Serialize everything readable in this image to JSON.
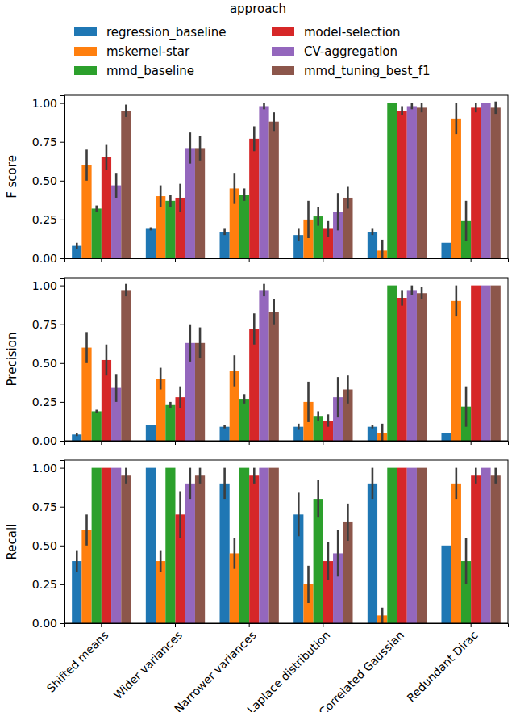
{
  "chart_data": [
    {
      "type": "bar",
      "ylabel": "F score",
      "legend": "top",
      "legend_title": "approach",
      "grid": false,
      "categories": [
        null,
        null,
        null,
        null,
        null,
        null
      ],
      "ylim": [
        0,
        1.05
      ],
      "yticks": [
        {
          "value": 0,
          "label": "0.00"
        },
        {
          "value": 0.25,
          "label": "0.25"
        },
        {
          "value": 0.5,
          "label": "0.50"
        },
        {
          "value": 0.75,
          "label": "0.75"
        },
        {
          "value": 1,
          "label": "1.00"
        }
      ],
      "series": [
        {
          "name": "regression_baseline",
          "color": "#1f77b4",
          "values": [
            0.08,
            0.19,
            0.17,
            0.15,
            0.17,
            0.1
          ],
          "errors": [
            0.02,
            0.01,
            0.02,
            0.04,
            0.02,
            0
          ]
        },
        {
          "name": "mskernel-star",
          "color": "#ff7f0e",
          "values": [
            0.6,
            0.4,
            0.45,
            0.25,
            0.05,
            0.9
          ],
          "errors": [
            0.1,
            0.07,
            0.1,
            0.12,
            0.07,
            0.1
          ]
        },
        {
          "name": "mmd_baseline",
          "color": "#2ca02c",
          "values": [
            0.32,
            0.37,
            0.41,
            0.27,
            1.0,
            0.24
          ],
          "errors": [
            0.02,
            0.04,
            0.04,
            0.06,
            0,
            0.13
          ]
        },
        {
          "name": "model-selection",
          "color": "#d62728",
          "values": [
            0.65,
            0.39,
            0.77,
            0.19,
            0.95,
            0.97
          ],
          "errors": [
            0.08,
            0.09,
            0.08,
            0.05,
            0.03,
            0.03
          ]
        },
        {
          "name": "CV-aggregation",
          "color": "#9467bd",
          "values": [
            0.47,
            0.71,
            0.98,
            0.3,
            0.98,
            1.0
          ],
          "errors": [
            0.08,
            0.1,
            0.02,
            0.12,
            0.02,
            0
          ]
        },
        {
          "name": "mmd_tuning_best_f1",
          "color": "#8c564b",
          "values": [
            0.95,
            0.71,
            0.88,
            0.39,
            0.97,
            0.97
          ],
          "errors": [
            0.04,
            0.08,
            0.06,
            0.07,
            0.03,
            0.04
          ]
        }
      ]
    },
    {
      "type": "bar",
      "ylabel": "Precision",
      "grid": false,
      "categories": [
        null,
        null,
        null,
        null,
        null,
        null
      ],
      "ylim": [
        0,
        1.05
      ],
      "yticks": [
        {
          "value": 0,
          "label": "0.00"
        },
        {
          "value": 0.25,
          "label": "0.25"
        },
        {
          "value": 0.5,
          "label": "0.50"
        },
        {
          "value": 0.75,
          "label": "0.75"
        },
        {
          "value": 1,
          "label": "1.00"
        }
      ],
      "series": [
        {
          "color": "#1f77b4",
          "values": [
            0.04,
            0.1,
            0.09,
            0.09,
            0.09,
            0.05
          ],
          "errors": [
            0.01,
            0,
            0.01,
            0.02,
            0.01,
            0
          ]
        },
        {
          "color": "#ff7f0e",
          "values": [
            0.6,
            0.4,
            0.45,
            0.25,
            0.05,
            0.9
          ],
          "errors": [
            0.1,
            0.07,
            0.1,
            0.13,
            0.06,
            0.1
          ]
        },
        {
          "color": "#2ca02c",
          "values": [
            0.19,
            0.23,
            0.27,
            0.16,
            1.0,
            0.22
          ],
          "errors": [
            0.01,
            0.02,
            0.03,
            0.03,
            0,
            0.13
          ]
        },
        {
          "color": "#d62728",
          "values": [
            0.52,
            0.28,
            0.72,
            0.13,
            0.92,
            1.0
          ],
          "errors": [
            0.1,
            0.07,
            0.1,
            0.04,
            0.05,
            0
          ]
        },
        {
          "color": "#9467bd",
          "values": [
            0.34,
            0.63,
            0.97,
            0.28,
            0.97,
            1.0
          ],
          "errors": [
            0.09,
            0.12,
            0.04,
            0.13,
            0.03,
            0
          ]
        },
        {
          "color": "#8c564b",
          "values": [
            0.97,
            0.63,
            0.83,
            0.33,
            0.95,
            1.0
          ],
          "errors": [
            0.04,
            0.1,
            0.08,
            0.09,
            0.04,
            0
          ]
        }
      ]
    },
    {
      "type": "bar",
      "ylabel": "Recall",
      "grid": false,
      "categories": [
        "Shifted means",
        "Wider variances",
        "Narrower variances",
        "Laplace distribution",
        "Correlated Gaussian",
        "Redundant Dirac"
      ],
      "ylim": [
        0,
        1.05
      ],
      "yticks": [
        {
          "value": 0,
          "label": "0.00"
        },
        {
          "value": 0.25,
          "label": "0.25"
        },
        {
          "value": 0.5,
          "label": "0.50"
        },
        {
          "value": 0.75,
          "label": "0.75"
        },
        {
          "value": 1,
          "label": "1.00"
        }
      ],
      "series": [
        {
          "color": "#1f77b4",
          "values": [
            0.4,
            1.0,
            0.9,
            0.7,
            0.9,
            0.5
          ],
          "errors": [
            0.07,
            0,
            0.1,
            0.14,
            0.1,
            0
          ]
        },
        {
          "color": "#ff7f0e",
          "values": [
            0.6,
            0.4,
            0.45,
            0.25,
            0.05,
            0.9
          ],
          "errors": [
            0.1,
            0.07,
            0.1,
            0.12,
            0.05,
            0.1
          ]
        },
        {
          "color": "#2ca02c",
          "values": [
            1.0,
            1.0,
            1.0,
            0.8,
            1.0,
            0.4
          ],
          "errors": [
            0,
            0,
            0,
            0.12,
            0,
            0.15
          ]
        },
        {
          "color": "#d62728",
          "values": [
            1.0,
            0.7,
            0.95,
            0.4,
            1.0,
            0.95
          ],
          "errors": [
            0,
            0.15,
            0.05,
            0.12,
            0,
            0.05
          ]
        },
        {
          "color": "#9467bd",
          "values": [
            1.0,
            0.9,
            1.0,
            0.45,
            1.0,
            1.0
          ],
          "errors": [
            0,
            0.1,
            0,
            0.15,
            0,
            0
          ]
        },
        {
          "color": "#8c564b",
          "values": [
            0.95,
            0.95,
            1.0,
            0.65,
            1.0,
            0.95
          ],
          "errors": [
            0.05,
            0.05,
            0,
            0.12,
            0,
            0.05
          ]
        }
      ]
    }
  ]
}
